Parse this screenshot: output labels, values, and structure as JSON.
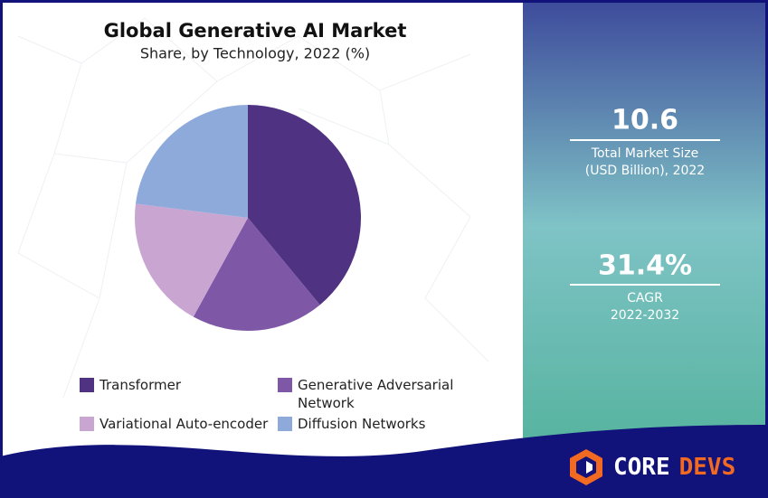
{
  "chart_data": {
    "type": "pie",
    "title": "Global Generative AI Market",
    "subtitle": "Share, by Technology, 2022 (%)",
    "categories": [
      "Transformer",
      "Generative Adversarial Network",
      "Variational Auto-encoder",
      "Diffusion Networks"
    ],
    "values": [
      39,
      19,
      19,
      23
    ],
    "colors": [
      "#4f3282",
      "#7e57a6",
      "#c9a6d2",
      "#8eaadb"
    ]
  },
  "stats": [
    {
      "value": "10.6",
      "label": "Total Market Size",
      "sublabel": "(USD Billion), 2022"
    },
    {
      "value": "31.4%",
      "label": "CAGR",
      "sublabel": "2022-2032"
    }
  ],
  "brand": {
    "words": [
      "CORE",
      "DEVS"
    ]
  }
}
